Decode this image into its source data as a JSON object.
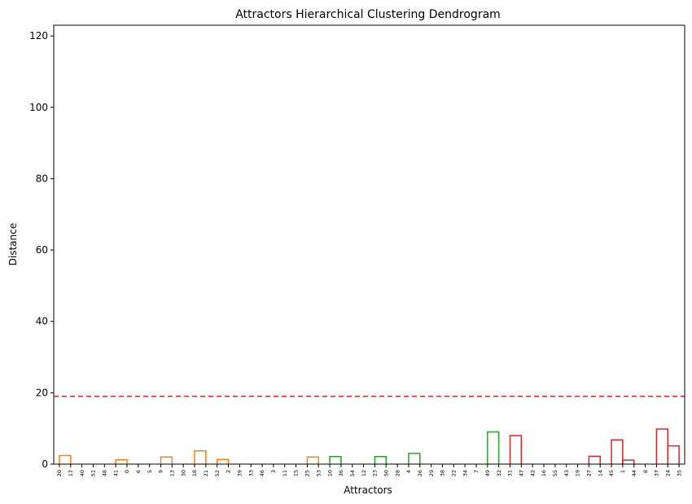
{
  "chart_data": {
    "type": "dendrogram",
    "title": "Attractors Hierarchical Clustering Dendrogram",
    "xlabel": "Attractors",
    "ylabel": "Distance",
    "ylim": [
      0,
      123
    ],
    "yticks": [
      0,
      20,
      40,
      60,
      80,
      100,
      120
    ],
    "leaves": [
      "20",
      "17",
      "40",
      "51",
      "48",
      "41",
      "0",
      "6",
      "5",
      "9",
      "13",
      "30",
      "18",
      "21",
      "52",
      "2",
      "39",
      "33",
      "46",
      "3",
      "11",
      "15",
      "25",
      "53",
      "10",
      "36",
      "54",
      "12",
      "23",
      "50",
      "28",
      "4",
      "26",
      "29",
      "38",
      "22",
      "34",
      "7",
      "49",
      "32",
      "31",
      "47",
      "42",
      "16",
      "55",
      "43",
      "19",
      "27",
      "14",
      "45",
      "1",
      "44",
      "8",
      "37",
      "24",
      "35"
    ],
    "threshold": 19.0,
    "threshold_color": "#d62728",
    "colors": {
      "above": "#1f77b4",
      "cluster1": "#ff7f0e",
      "cluster2": "#2ca02c",
      "cluster3": "#d62728"
    },
    "links": [
      {
        "x": [
          0,
          1
        ],
        "h": 2.4,
        "c": "cluster1"
      },
      {
        "x": [
          5,
          6
        ],
        "h": 1.2,
        "c": "cluster1"
      },
      {
        "x": [
          9,
          10
        ],
        "h": 2.0,
        "c": "cluster1"
      },
      {
        "x": [
          12,
          13
        ],
        "h": 3.7,
        "c": "cluster1"
      },
      {
        "x": [
          14,
          15
        ],
        "h": 1.3,
        "c": "cluster1"
      },
      {
        "x": [
          22,
          23
        ],
        "h": 2.0,
        "c": "cluster1"
      },
      {
        "x": [
          24,
          25
        ],
        "h": 2.1,
        "c": "cluster2"
      },
      {
        "x": [
          28,
          29
        ],
        "h": 2.1,
        "c": "cluster2"
      },
      {
        "x": [
          31,
          32
        ],
        "h": 3.0,
        "c": "cluster2"
      },
      {
        "x": [
          38,
          39
        ],
        "h": 9.0,
        "c": "cluster2"
      },
      {
        "x": [
          40,
          41
        ],
        "h": 8.0,
        "c": "cluster3"
      },
      {
        "x": [
          47,
          48
        ],
        "h": 2.2,
        "c": "cluster3"
      },
      {
        "x": [
          49,
          50
        ],
        "h": 6.8,
        "c": "cluster3"
      },
      {
        "x": [
          50,
          51
        ],
        "h": 1.1,
        "c": "cluster3"
      },
      {
        "x": [
          53,
          54
        ],
        "h": 9.8,
        "c": "cluster3"
      },
      {
        "x": [
          54,
          55
        ],
        "h": 5.1,
        "c": "cluster3"
      }
    ]
  }
}
